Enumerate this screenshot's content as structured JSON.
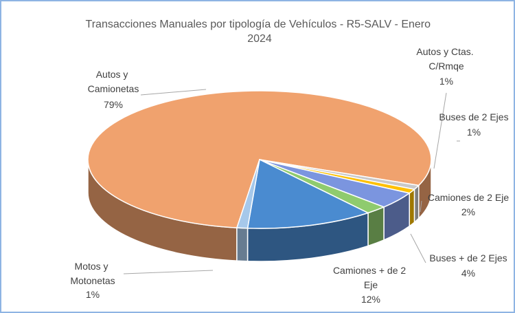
{
  "chart_data": {
    "type": "pie3d",
    "title": "Transacciones Manuales por tipología de Vehículos - R5-SALV -  Enero 2024",
    "categories": [
      "Autos y Camionetas",
      "Autos y Ctas. C/Rmqe",
      "Buses de 2 Ejes",
      "Buses + de 2 Ejes",
      "Camiones de 2 Eje",
      "Camiones + de 2 Eje",
      "Motos y Motonetas"
    ],
    "values": [
      79,
      1,
      1,
      4,
      2,
      12,
      1
    ],
    "value_labels": [
      "79%",
      "1%",
      "1%",
      "4%",
      "2%",
      "12%",
      "1%"
    ],
    "colors": [
      "#f0a26e",
      "#c9c9c9",
      "#ffc000",
      "#7b95df",
      "#8fcb6e",
      "#4a8bd0",
      "#a6c8ea"
    ]
  }
}
